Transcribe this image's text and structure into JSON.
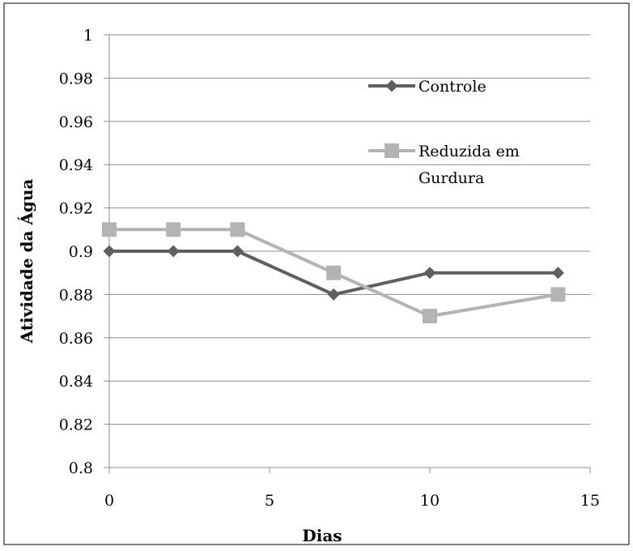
{
  "chart_data": {
    "type": "line",
    "title": "",
    "xlabel": "Dias",
    "ylabel": "Atividade da Água",
    "xlim": [
      0,
      15
    ],
    "ylim": [
      0.8,
      1
    ],
    "x_ticks": [
      "0",
      "5",
      "10",
      "15"
    ],
    "y_ticks": [
      "0.8",
      "0.82",
      "0.84",
      "0.86",
      "0.88",
      "0.9",
      "0.92",
      "0.94",
      "0.96",
      "0.98",
      "1"
    ],
    "grid": "horizontal",
    "legend_position": "top-right",
    "series": [
      {
        "name": "Controle",
        "color": "#5f5f5f",
        "marker": "diamond",
        "x": [
          0,
          2,
          4,
          7,
          10,
          14
        ],
        "y": [
          0.9,
          0.9,
          0.9,
          0.88,
          0.89,
          0.89
        ]
      },
      {
        "name": "Reduzida em Gurdura",
        "legend_lines": [
          "Reduzida em",
          "Gurdura"
        ],
        "color": "#b3b3b3",
        "marker": "square",
        "x": [
          0,
          2,
          4,
          7,
          10,
          14
        ],
        "y": [
          0.91,
          0.91,
          0.91,
          0.89,
          0.87,
          0.88
        ]
      }
    ]
  }
}
